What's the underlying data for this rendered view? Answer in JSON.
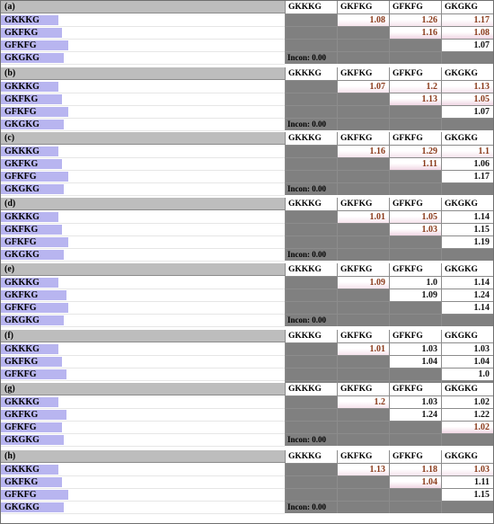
{
  "headers": [
    "GKKKG",
    "GKFKG",
    "GFKFG",
    "GKGKG"
  ],
  "incon_label": "Incon: 0.00",
  "colors": {
    "header_bar": "#bdbdbd",
    "row_bar": "#b8b5f0",
    "gray_cell": "#808080",
    "highlight_text": "#8a3a1a"
  },
  "panels": [
    {
      "label": "(a)",
      "rows": [
        "GKKKG",
        "GKFKG",
        "GFKFG",
        "GKGKG"
      ],
      "bars": [
        0.58,
        0.62,
        0.68,
        0.64
      ],
      "matrix": [
        [
          "1.08",
          "1.26",
          "1.17"
        ],
        [
          "1.16",
          "1.08"
        ],
        [
          "1.07"
        ]
      ],
      "highlight": [
        [
          1,
          1,
          1
        ],
        [
          1,
          1
        ],
        [
          0
        ]
      ],
      "incon": true
    },
    {
      "label": "(b)",
      "rows": [
        "GKKKG",
        "GKFKG",
        "GFKFG",
        "GKGKG"
      ],
      "bars": [
        0.58,
        0.62,
        0.68,
        0.64
      ],
      "matrix": [
        [
          "1.07",
          "1.2",
          "1.13"
        ],
        [
          "1.13",
          "1.05"
        ],
        [
          "1.07"
        ]
      ],
      "highlight": [
        [
          1,
          1,
          1
        ],
        [
          1,
          1
        ],
        [
          0
        ]
      ],
      "incon": true
    },
    {
      "label": "(c)",
      "rows": [
        "GKKKG",
        "GKFKG",
        "GFKFG",
        "GKGKG"
      ],
      "bars": [
        0.58,
        0.62,
        0.68,
        0.64
      ],
      "matrix": [
        [
          "1.16",
          "1.29",
          "1.1"
        ],
        [
          "1.11",
          "1.06"
        ],
        [
          "1.17"
        ]
      ],
      "highlight": [
        [
          1,
          1,
          1
        ],
        [
          1,
          0
        ],
        [
          0
        ]
      ],
      "incon": true
    },
    {
      "label": "(d)",
      "rows": [
        "GKKKG",
        "GKFKG",
        "GFKFG",
        "GKGKG"
      ],
      "bars": [
        0.58,
        0.62,
        0.68,
        0.64
      ],
      "matrix": [
        [
          "1.01",
          "1.05",
          "1.14"
        ],
        [
          "1.03",
          "1.15"
        ],
        [
          "1.19"
        ]
      ],
      "highlight": [
        [
          1,
          1,
          0
        ],
        [
          1,
          0
        ],
        [
          0
        ]
      ],
      "incon": true
    },
    {
      "label": "(e)",
      "rows": [
        "GKKKG",
        "GKFKG",
        "GFKFG",
        "GKGKG"
      ],
      "bars": [
        0.58,
        0.66,
        0.68,
        0.64
      ],
      "matrix": [
        [
          "1.09",
          "1.0",
          "1.14"
        ],
        [
          "1.09",
          "1.24"
        ],
        [
          "1.14"
        ]
      ],
      "highlight": [
        [
          1,
          0,
          0
        ],
        [
          0,
          0
        ],
        [
          0
        ]
      ],
      "incon": true
    },
    {
      "label": "(f)",
      "rows": [
        "GKKKG",
        "GKFKG",
        "GFKFG"
      ],
      "bars": [
        0.58,
        0.62,
        0.66
      ],
      "matrix": [
        [
          "1.01",
          "1.03",
          "1.03"
        ],
        [
          "1.04",
          "1.04"
        ],
        [
          "1.0"
        ]
      ],
      "highlight": [
        [
          1,
          0,
          0
        ],
        [
          0,
          0
        ],
        [
          0
        ]
      ],
      "incon": false
    },
    {
      "label": "(g)",
      "rows": [
        "GKKKG",
        "GKFKG",
        "GFKFG",
        "GKGKG"
      ],
      "bars": [
        0.58,
        0.66,
        0.62,
        0.64
      ],
      "matrix": [
        [
          "1.2",
          "1.03",
          "1.02"
        ],
        [
          "1.24",
          "1.22"
        ],
        [
          "1.02"
        ]
      ],
      "highlight": [
        [
          1,
          0,
          0
        ],
        [
          0,
          0
        ],
        [
          1
        ]
      ],
      "incon": true
    },
    {
      "label": "(h)",
      "rows": [
        "GKKKG",
        "GKFKG",
        "GFKFG",
        "GKGKG"
      ],
      "bars": [
        0.58,
        0.62,
        0.68,
        0.64
      ],
      "matrix": [
        [
          "1.13",
          "1.18",
          "1.03"
        ],
        [
          "1.04",
          "1.11"
        ],
        [
          "1.15"
        ]
      ],
      "highlight": [
        [
          1,
          1,
          1
        ],
        [
          1,
          0
        ],
        [
          0
        ]
      ],
      "incon": true
    }
  ]
}
